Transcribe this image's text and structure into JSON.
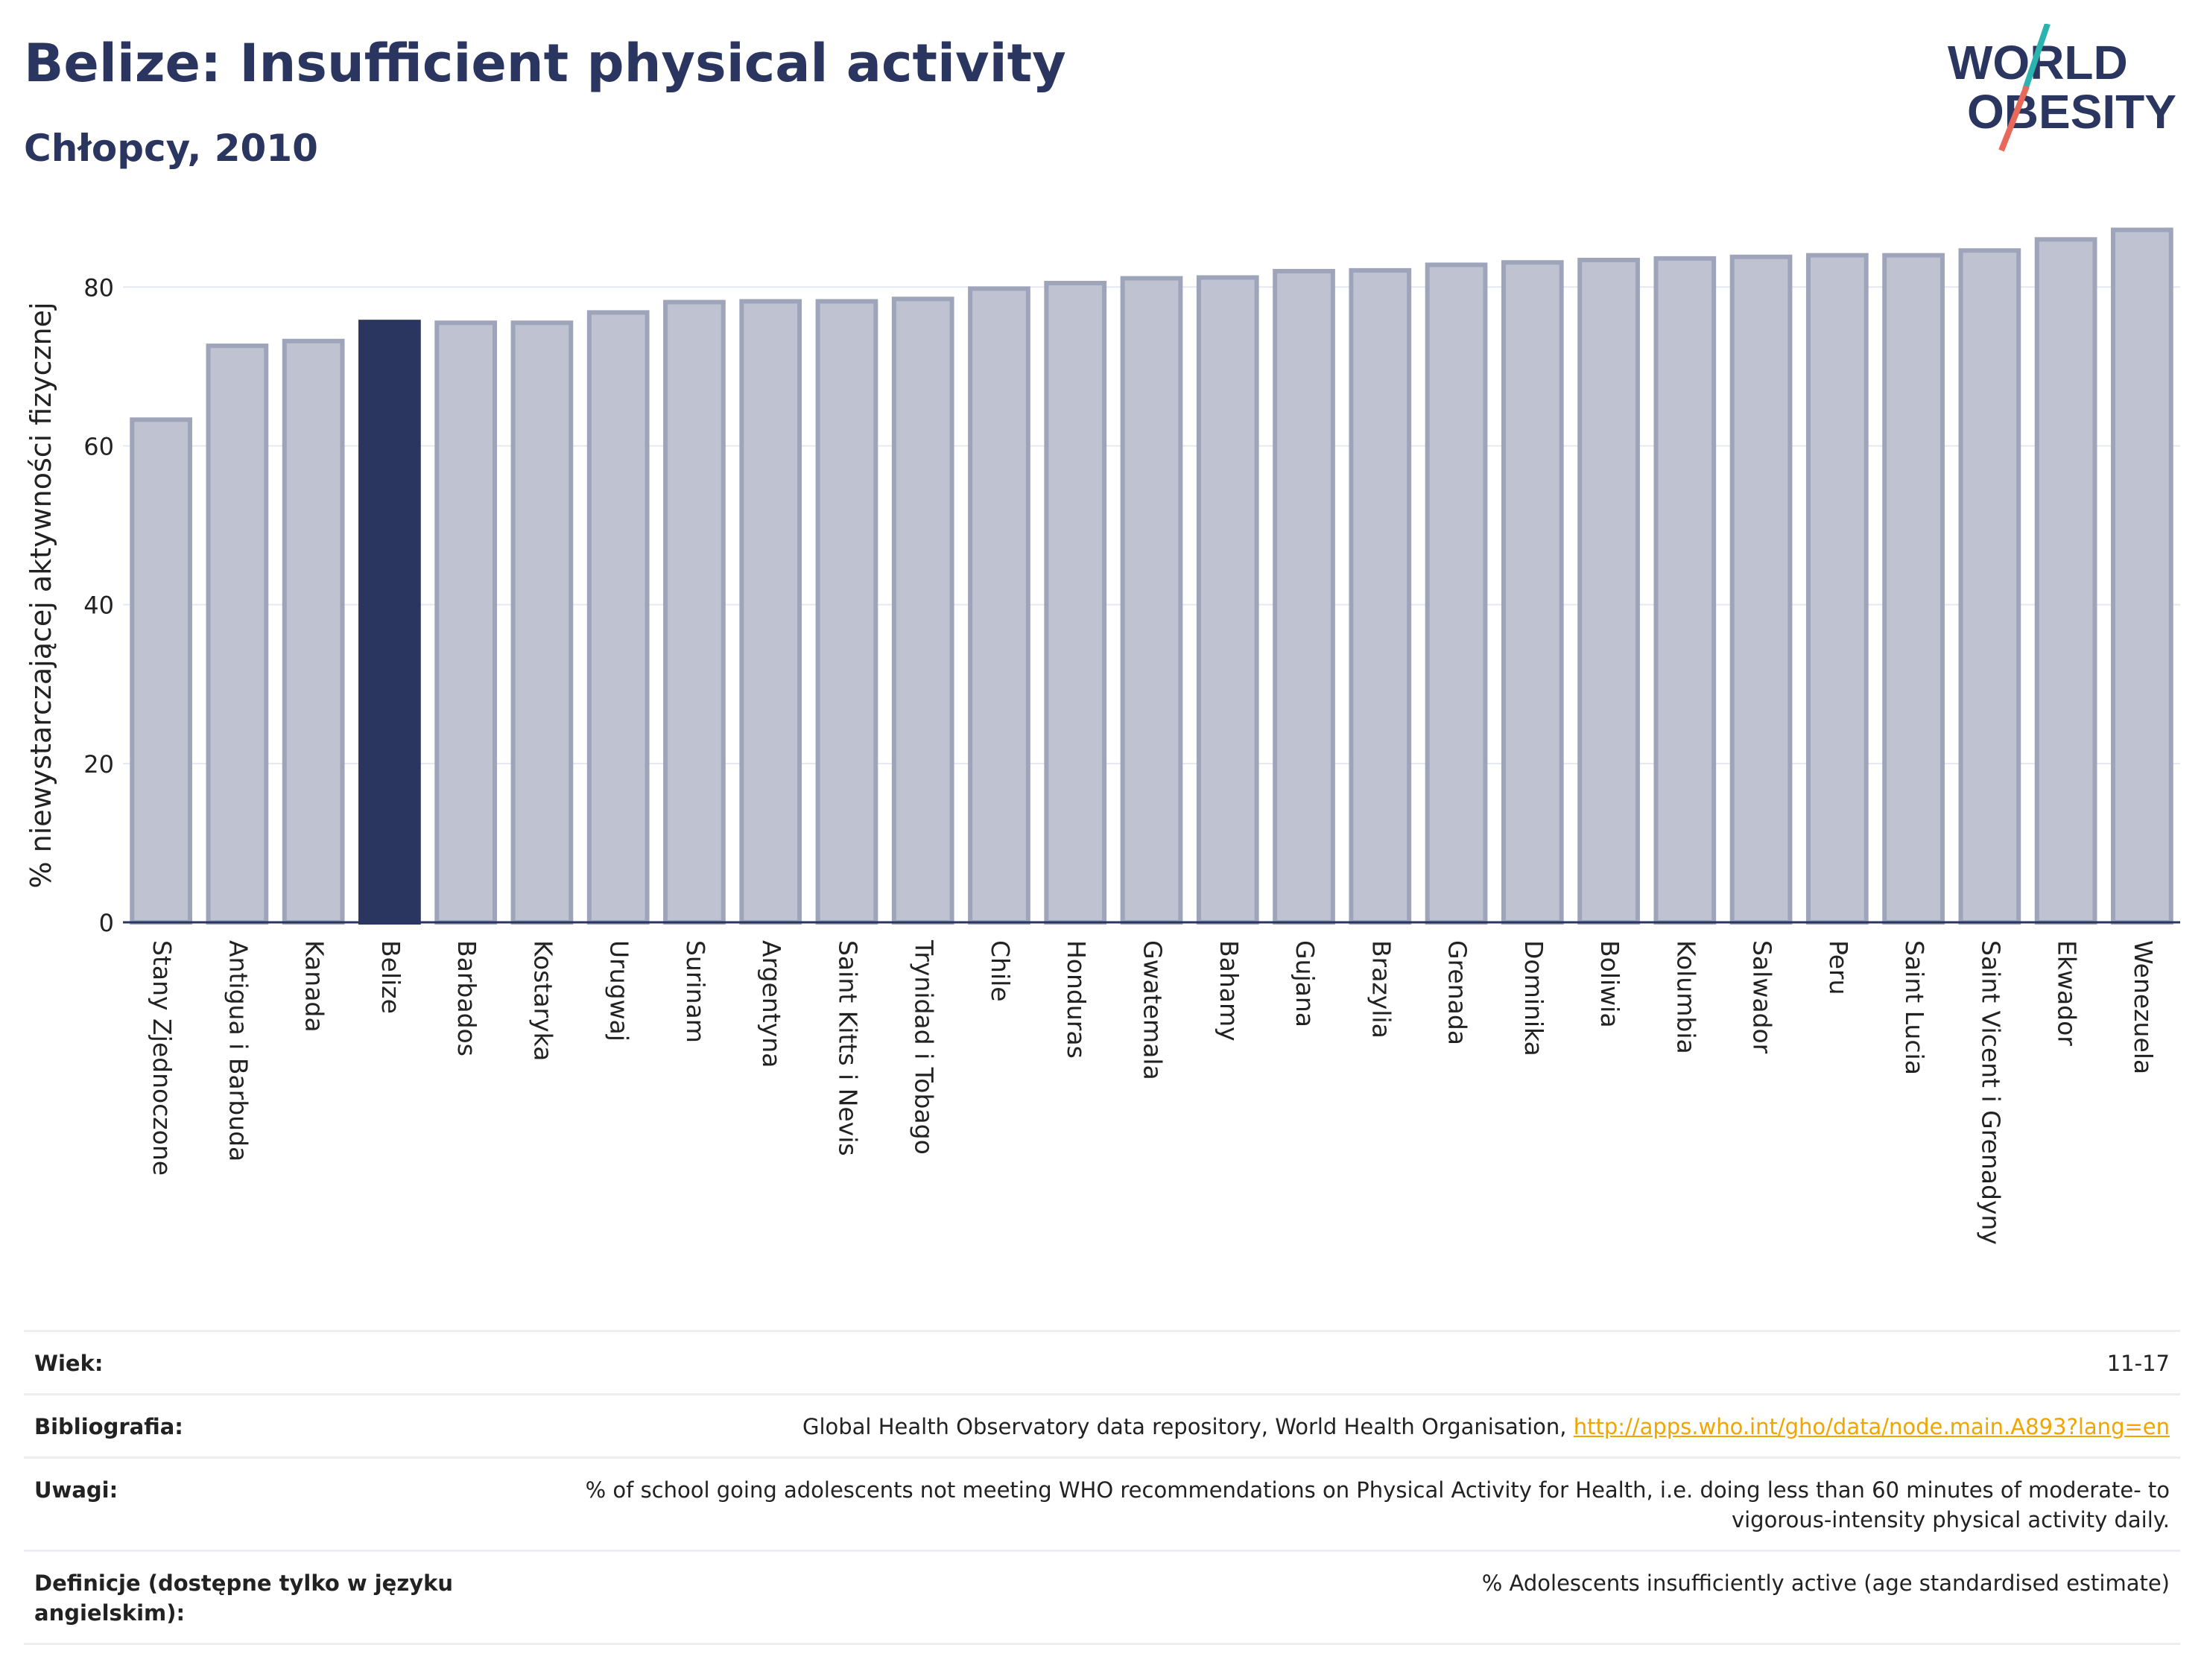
{
  "header": {
    "title": "Belize: Insufficient physical activity",
    "subtitle": "Chłopcy, 2010"
  },
  "logo": {
    "line1": "WORLD",
    "line2": "OBESITY",
    "colors": {
      "text": "#2a3560",
      "slash_teal": "#2bb3b0",
      "slash_coral": "#e8685a"
    }
  },
  "chart_data": {
    "type": "bar",
    "title": "Belize: Insufficient physical activity",
    "subtitle": "Chłopcy, 2010",
    "xlabel": "",
    "ylabel": "% niewystarczającej aktywności fizycznej",
    "ylim": [
      0,
      88
    ],
    "yticks": [
      0,
      20,
      40,
      60,
      80
    ],
    "grid": true,
    "highlight": "Belize",
    "colors": {
      "bar": "#bfc3d1",
      "bar_border": "#9ea4ba",
      "highlight": "#2a3560",
      "axis": "#2a3560",
      "grid": "#e6e8ef"
    },
    "categories": [
      "Stany Zjednoczone",
      "Antigua i Barbuda",
      "Kanada",
      "Belize",
      "Barbados",
      "Kostaryka",
      "Urugwaj",
      "Surinam",
      "Argentyna",
      "Saint Kitts i Nevis",
      "Trynidad i Tobago",
      "Chile",
      "Honduras",
      "Gwatemala",
      "Bahamy",
      "Gujana",
      "Brazylia",
      "Grenada",
      "Dominika",
      "Boliwia",
      "Kolumbia",
      "Salwador",
      "Peru",
      "Saint Lucia",
      "Saint Vicent i Grenadyny",
      "Ekwador",
      "Wenezuela"
    ],
    "values": [
      63.3,
      72.6,
      73.2,
      75.6,
      75.5,
      75.5,
      76.8,
      78.1,
      78.2,
      78.2,
      78.5,
      79.8,
      80.5,
      81.1,
      81.2,
      82.0,
      82.1,
      82.8,
      83.1,
      83.4,
      83.6,
      83.8,
      84.0,
      84.0,
      84.6,
      86.0,
      87.2
    ]
  },
  "meta": {
    "rows": [
      {
        "label": "Wiek:",
        "value": "11-17"
      },
      {
        "label": "Bibliografia:",
        "value": "Global Health Observatory data repository, World Health Organisation, ",
        "link": "http://apps.who.int/gho/data/node.main.A893?lang=en"
      },
      {
        "label": "Uwagi:",
        "value": "% of school going adolescents not meeting WHO recommendations on Physical Activity for Health, i.e. doing less than 60 minutes of moderate- to vigorous-intensity physical activity daily."
      },
      {
        "label": "Definicje (dostępne tylko w języku angielskim):",
        "value": "% Adolescents insufficiently active (age standardised estimate)"
      }
    ]
  }
}
